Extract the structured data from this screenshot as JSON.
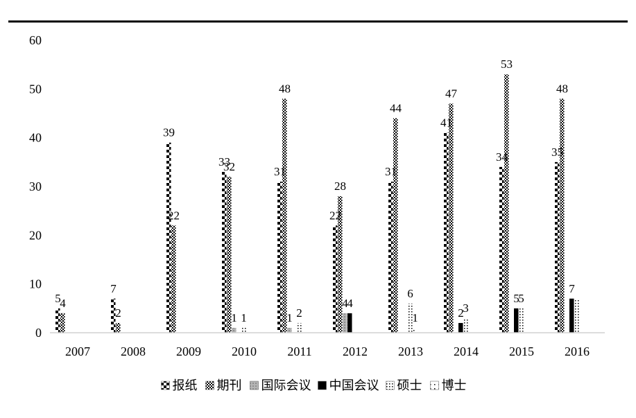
{
  "chart_data": {
    "type": "bar",
    "categories": [
      "2007",
      "2008",
      "2009",
      "2010",
      "2011",
      "2012",
      "2013",
      "2014",
      "2015",
      "2016"
    ],
    "series": [
      {
        "name": "报纸",
        "values": [
          5,
          7,
          39,
          33,
          31,
          22,
          31,
          41,
          34,
          35
        ],
        "pattern": "checker-bold"
      },
      {
        "name": "期刊",
        "values": [
          4,
          2,
          22,
          32,
          48,
          28,
          44,
          47,
          53,
          48
        ],
        "pattern": "checker-fine"
      },
      {
        "name": "国际会议",
        "values": [
          0,
          0,
          0,
          1,
          1,
          4,
          0,
          0,
          0,
          0
        ],
        "pattern": "gray"
      },
      {
        "name": "中国会议",
        "values": [
          0,
          0,
          0,
          0,
          0,
          4,
          0,
          2,
          5,
          7
        ],
        "pattern": "black"
      },
      {
        "name": "硕士",
        "values": [
          0,
          0,
          0,
          1,
          2,
          0,
          6,
          3,
          5,
          7
        ],
        "pattern": "dots"
      },
      {
        "name": "博士",
        "values": [
          0,
          0,
          0,
          0,
          0,
          0,
          1,
          0,
          0,
          0
        ],
        "pattern": "dots-sparse"
      }
    ],
    "yticks": [
      "0",
      "10",
      "20",
      "30",
      "40",
      "50",
      "60"
    ],
    "ylim": [
      0,
      60
    ],
    "grid": false,
    "legend_position": "bottom",
    "data_labels": [
      {
        "category": "2007",
        "series": 0,
        "text": "5"
      },
      {
        "category": "2007",
        "series": 1,
        "text": "4"
      },
      {
        "category": "2008",
        "series": 0,
        "text": "7"
      },
      {
        "category": "2008",
        "series": 1,
        "text": "2"
      },
      {
        "category": "2009",
        "series": 0,
        "text": "39"
      },
      {
        "category": "2009",
        "series": 1,
        "text": "22"
      },
      {
        "category": "2010",
        "series": 0,
        "text": "33"
      },
      {
        "category": "2010",
        "series": 1,
        "text": "32"
      },
      {
        "category": "2010",
        "series": 2,
        "text": "1"
      },
      {
        "category": "2010",
        "series": 4,
        "text": "1"
      },
      {
        "category": "2011",
        "series": 0,
        "text": "31"
      },
      {
        "category": "2011",
        "series": 1,
        "text": "48"
      },
      {
        "category": "2011",
        "series": 2,
        "text": "1"
      },
      {
        "category": "2011",
        "series": 4,
        "text": "2"
      },
      {
        "category": "2012",
        "series": 0,
        "text": "22"
      },
      {
        "category": "2012",
        "series": 1,
        "text": "28"
      },
      {
        "category": "2012",
        "series": 3,
        "text": "4"
      },
      {
        "category": "2012",
        "series": 2,
        "text": "4"
      },
      {
        "category": "2013",
        "series": 0,
        "text": "31"
      },
      {
        "category": "2013",
        "series": 1,
        "text": "44"
      },
      {
        "category": "2013",
        "series": 4,
        "text": "6"
      },
      {
        "category": "2013",
        "series": 5,
        "text": "1"
      },
      {
        "category": "2014",
        "series": 0,
        "text": "41"
      },
      {
        "category": "2014",
        "series": 1,
        "text": "47"
      },
      {
        "category": "2014",
        "series": 3,
        "text": "2"
      },
      {
        "category": "2014",
        "series": 4,
        "text": "3"
      },
      {
        "category": "2015",
        "series": 0,
        "text": "34"
      },
      {
        "category": "2015",
        "series": 1,
        "text": "53"
      },
      {
        "category": "2015",
        "series": 3,
        "text": "5"
      },
      {
        "category": "2015",
        "series": 4,
        "text": "5"
      },
      {
        "category": "2016",
        "series": 0,
        "text": "35"
      },
      {
        "category": "2016",
        "series": 1,
        "text": "48"
      },
      {
        "category": "2016",
        "series": 3,
        "text": "7"
      }
    ]
  }
}
